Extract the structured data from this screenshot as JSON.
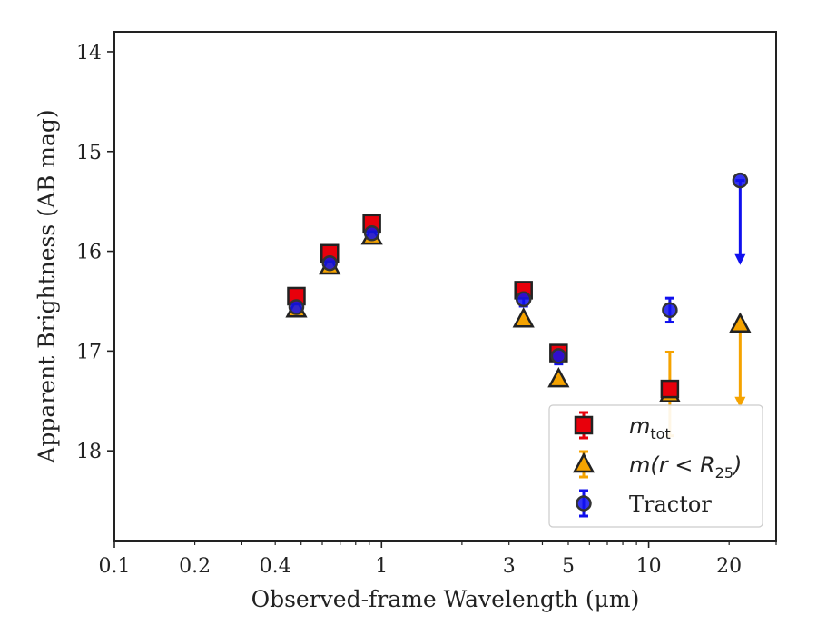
{
  "chart_data": {
    "type": "scatter",
    "xlabel": "Observed-frame Wavelength (μm)",
    "ylabel": "Apparent Brightness (AB mag)",
    "xscale": "log",
    "xlim": [
      0.1,
      30
    ],
    "ylim": [
      18.9,
      13.8
    ],
    "y_inverted": true,
    "grid": false,
    "legend_position": "bottom-right",
    "x_ticks": [
      {
        "value": 0.1,
        "label": "0.1"
      },
      {
        "value": 0.2,
        "label": "0.2"
      },
      {
        "value": 0.4,
        "label": "0.4"
      },
      {
        "value": 1,
        "label": "1"
      },
      {
        "value": 3,
        "label": "3"
      },
      {
        "value": 5,
        "label": "5"
      },
      {
        "value": 10,
        "label": "10"
      },
      {
        "value": 20,
        "label": "20"
      }
    ],
    "y_ticks": [
      {
        "value": 14,
        "label": "14"
      },
      {
        "value": 15,
        "label": "15"
      },
      {
        "value": 16,
        "label": "16"
      },
      {
        "value": 17,
        "label": "17"
      },
      {
        "value": 18,
        "label": "18"
      }
    ],
    "series": [
      {
        "key": "mtot",
        "name": "m_tot",
        "legend_main": "m",
        "legend_sub": "tot",
        "legend_after": "",
        "marker": "square",
        "color": "#e8000b",
        "edge": "#222222",
        "points": [
          {
            "x": 0.48,
            "y": 16.45,
            "err": 0.07
          },
          {
            "x": 0.64,
            "y": 16.02,
            "err": 0.07
          },
          {
            "x": 0.92,
            "y": 15.72,
            "err": 0.07
          },
          {
            "x": 3.4,
            "y": 16.39,
            "err": 0.07
          },
          {
            "x": 4.6,
            "y": 17.02,
            "err": 0.07
          },
          {
            "x": 12.0,
            "y": 17.38,
            "err": 0.07
          }
        ]
      },
      {
        "key": "mr25",
        "name": "m(r < R25)",
        "legend_main": "m(r < R",
        "legend_sub": "25",
        "legend_after": ")",
        "marker": "triangle",
        "color": "#f5a300",
        "edge": "#222222",
        "points": [
          {
            "x": 0.48,
            "y": 16.58
          },
          {
            "x": 0.64,
            "y": 16.15
          },
          {
            "x": 0.92,
            "y": 15.85
          },
          {
            "x": 3.4,
            "y": 16.68
          },
          {
            "x": 4.6,
            "y": 17.28
          },
          {
            "x": 12.0,
            "y": 17.43,
            "err_low": 0.42,
            "err_high": 0.42
          },
          {
            "x": 22.0,
            "y": 16.73,
            "limit_to": 17.55
          }
        ]
      },
      {
        "key": "tractor",
        "name": "Tractor",
        "legend_main": "Tractor",
        "legend_sub": "",
        "legend_after": "",
        "marker": "circle",
        "color": "#1010ee",
        "edge": "#333333",
        "points": [
          {
            "x": 0.48,
            "y": 16.56,
            "err": 0.08
          },
          {
            "x": 0.64,
            "y": 16.12,
            "err": 0.07
          },
          {
            "x": 0.92,
            "y": 15.82,
            "err": 0.06
          },
          {
            "x": 3.4,
            "y": 16.48,
            "err": 0.07
          },
          {
            "x": 4.6,
            "y": 17.05,
            "err": 0.08
          },
          {
            "x": 12.0,
            "y": 16.59,
            "err": 0.12
          },
          {
            "x": 22.0,
            "y": 15.29,
            "limit_to": 16.12
          }
        ]
      }
    ]
  }
}
